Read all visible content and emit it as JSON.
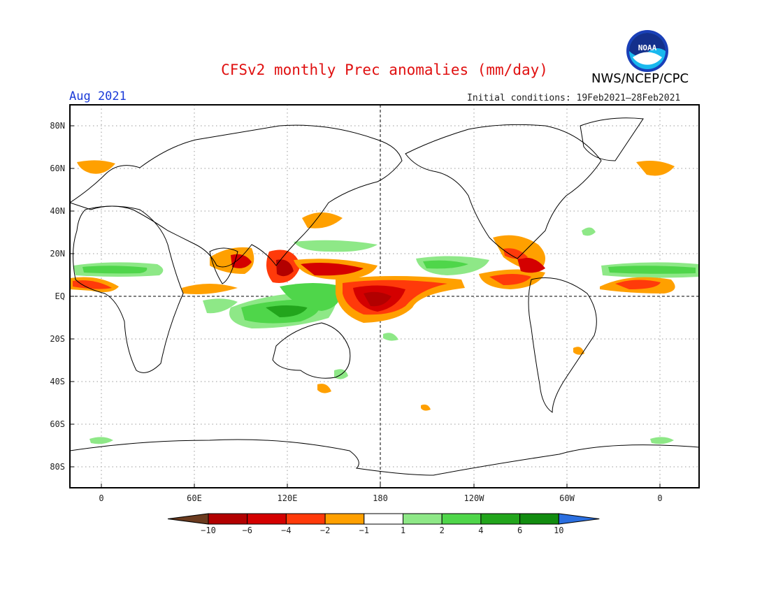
{
  "header": {
    "title": "CFSv2 monthly Prec anomalies (mm/day)",
    "organization": "NWS/NCEP/CPC",
    "logo_text": "NOAA",
    "forecast_month": "Aug 2021",
    "initial_conditions": "Initial conditions: 19Feb2021–28Feb2021"
  },
  "map": {
    "lat_labels": [
      "80N",
      "60N",
      "40N",
      "20N",
      "EQ",
      "20S",
      "40S",
      "60S",
      "80S"
    ],
    "lon_labels": [
      "0",
      "60E",
      "120E",
      "180",
      "120W",
      "60W",
      "0"
    ],
    "grid": "dotted",
    "colors": {
      "coast": "#000000",
      "grid": "#888888"
    }
  },
  "legend": {
    "tick_labels": [
      "−10",
      "−6",
      "−4",
      "−2",
      "−1",
      "1",
      "2",
      "4",
      "6",
      "10"
    ],
    "colors": [
      "#6b3b1f",
      "#b20000",
      "#d40000",
      "#ff3a0a",
      "#ffa000",
      "#ffffff",
      "#8ee887",
      "#4fd64a",
      "#22a51c",
      "#128c10",
      "#2b6fe0"
    ]
  }
}
